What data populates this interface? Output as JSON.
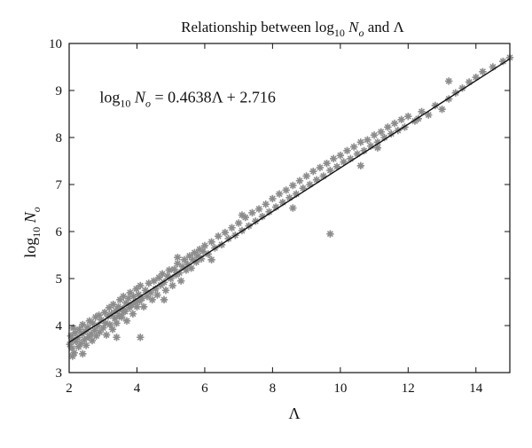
{
  "chart_data": {
    "type": "scatter",
    "title": {
      "prefix": "Relationship between log",
      "sub": "10",
      "var": "N",
      "var_sub": "o",
      "suffix": " and Λ"
    },
    "xlabel": "Λ",
    "ylabel": {
      "prefix": "log",
      "sub": "10",
      "var": "N",
      "var_sub": "o"
    },
    "xlim": [
      2,
      15
    ],
    "ylim": [
      3,
      10
    ],
    "xticks": [
      2,
      4,
      6,
      8,
      10,
      12,
      14
    ],
    "yticks": [
      3,
      4,
      5,
      6,
      7,
      8,
      9,
      10
    ],
    "grid": false,
    "legend": "none",
    "series": [
      {
        "marker": "star",
        "color": "#8c8c8c",
        "points": [
          [
            2.02,
            3.6
          ],
          [
            2.05,
            3.78
          ],
          [
            2.08,
            3.52
          ],
          [
            2.1,
            3.7
          ],
          [
            2.12,
            3.95
          ],
          [
            2.15,
            3.42
          ],
          [
            2.18,
            3.85
          ],
          [
            2.2,
            3.66
          ],
          [
            2.25,
            3.74
          ],
          [
            2.28,
            3.55
          ],
          [
            2.3,
            3.92
          ],
          [
            2.35,
            3.62
          ],
          [
            2.38,
            3.82
          ],
          [
            2.4,
            4.02
          ],
          [
            2.45,
            3.7
          ],
          [
            2.48,
            3.88
          ],
          [
            2.5,
            3.58
          ],
          [
            2.55,
            3.96
          ],
          [
            2.58,
            3.76
          ],
          [
            2.6,
            4.1
          ],
          [
            2.65,
            3.82
          ],
          [
            2.68,
            3.68
          ],
          [
            2.7,
            4.05
          ],
          [
            2.75,
            3.9
          ],
          [
            2.78,
            4.18
          ],
          [
            2.8,
            3.78
          ],
          [
            2.85,
            4.0
          ],
          [
            2.88,
            4.22
          ],
          [
            2.9,
            3.86
          ],
          [
            2.95,
            4.12
          ],
          [
            3.0,
            3.95
          ],
          [
            3.05,
            4.28
          ],
          [
            3.08,
            4.05
          ],
          [
            3.1,
            3.8
          ],
          [
            3.15,
            4.2
          ],
          [
            3.18,
            4.38
          ],
          [
            3.2,
            4.02
          ],
          [
            3.25,
            4.25
          ],
          [
            3.28,
            3.92
          ],
          [
            3.3,
            4.45
          ],
          [
            3.35,
            4.15
          ],
          [
            3.38,
            4.32
          ],
          [
            3.4,
            4.05
          ],
          [
            3.45,
            4.4
          ],
          [
            3.48,
            4.22
          ],
          [
            3.5,
            4.55
          ],
          [
            3.55,
            4.18
          ],
          [
            3.58,
            4.36
          ],
          [
            3.6,
            4.62
          ],
          [
            3.65,
            4.3
          ],
          [
            3.68,
            4.48
          ],
          [
            3.7,
            4.1
          ],
          [
            3.75,
            4.58
          ],
          [
            3.78,
            4.38
          ],
          [
            3.8,
            4.7
          ],
          [
            3.85,
            4.44
          ],
          [
            3.88,
            4.25
          ],
          [
            3.9,
            4.62
          ],
          [
            3.95,
            4.5
          ],
          [
            3.98,
            4.78
          ],
          [
            4.0,
            4.4
          ],
          [
            4.05,
            4.66
          ],
          [
            4.08,
            4.52
          ],
          [
            4.1,
            4.85
          ],
          [
            4.15,
            4.58
          ],
          [
            4.2,
            4.4
          ],
          [
            4.25,
            4.75
          ],
          [
            4.3,
            4.62
          ],
          [
            4.35,
            4.9
          ],
          [
            4.4,
            4.7
          ],
          [
            4.45,
            4.55
          ],
          [
            4.5,
            4.95
          ],
          [
            4.55,
            4.78
          ],
          [
            4.6,
            4.65
          ],
          [
            4.65,
            5.02
          ],
          [
            4.7,
            4.86
          ],
          [
            4.75,
            5.1
          ],
          [
            4.8,
            4.92
          ],
          [
            4.85,
            4.75
          ],
          [
            4.9,
            5.05
          ],
          [
            4.95,
            5.18
          ],
          [
            5.0,
            5.0
          ],
          [
            5.05,
            4.85
          ],
          [
            5.1,
            5.2
          ],
          [
            5.15,
            5.08
          ],
          [
            5.2,
            5.32
          ],
          [
            5.25,
            5.12
          ],
          [
            5.3,
            4.95
          ],
          [
            5.35,
            5.25
          ],
          [
            5.4,
            5.4
          ],
          [
            5.45,
            5.18
          ],
          [
            5.5,
            5.3
          ],
          [
            5.55,
            5.48
          ],
          [
            5.6,
            5.22
          ],
          [
            5.65,
            5.4
          ],
          [
            5.7,
            5.55
          ],
          [
            5.75,
            5.35
          ],
          [
            5.8,
            5.48
          ],
          [
            5.85,
            5.62
          ],
          [
            5.9,
            5.42
          ],
          [
            5.95,
            5.58
          ],
          [
            6.0,
            5.7
          ],
          [
            6.1,
            5.52
          ],
          [
            6.2,
            5.78
          ],
          [
            6.3,
            5.65
          ],
          [
            6.4,
            5.9
          ],
          [
            6.5,
            5.72
          ],
          [
            6.6,
            5.98
          ],
          [
            6.7,
            5.85
          ],
          [
            6.8,
            6.08
          ],
          [
            6.9,
            5.92
          ],
          [
            7.0,
            6.18
          ],
          [
            7.1,
            6.02
          ],
          [
            7.2,
            6.3
          ],
          [
            7.3,
            6.12
          ],
          [
            7.4,
            6.4
          ],
          [
            7.5,
            6.22
          ],
          [
            7.6,
            6.48
          ],
          [
            7.7,
            6.32
          ],
          [
            7.8,
            6.58
          ],
          [
            7.9,
            6.42
          ],
          [
            8.0,
            6.7
          ],
          [
            8.1,
            6.52
          ],
          [
            8.2,
            6.8
          ],
          [
            8.3,
            6.62
          ],
          [
            8.4,
            6.88
          ],
          [
            8.5,
            6.72
          ],
          [
            8.6,
            6.98
          ],
          [
            8.7,
            6.8
          ],
          [
            8.8,
            7.08
          ],
          [
            8.9,
            6.92
          ],
          [
            9.0,
            7.18
          ],
          [
            9.1,
            7.0
          ],
          [
            9.2,
            7.28
          ],
          [
            9.3,
            7.1
          ],
          [
            9.4,
            7.36
          ],
          [
            9.5,
            7.18
          ],
          [
            9.6,
            7.45
          ],
          [
            9.7,
            7.3
          ],
          [
            9.8,
            7.55
          ],
          [
            9.9,
            7.38
          ],
          [
            10.0,
            7.62
          ],
          [
            10.1,
            7.48
          ],
          [
            10.2,
            7.72
          ],
          [
            10.3,
            7.55
          ],
          [
            10.4,
            7.8
          ],
          [
            10.5,
            7.65
          ],
          [
            10.6,
            7.9
          ],
          [
            10.7,
            7.72
          ],
          [
            10.8,
            7.95
          ],
          [
            10.9,
            7.82
          ],
          [
            11.0,
            8.05
          ],
          [
            11.1,
            7.9
          ],
          [
            11.2,
            8.12
          ],
          [
            11.3,
            8.0
          ],
          [
            11.4,
            8.22
          ],
          [
            11.5,
            8.08
          ],
          [
            11.6,
            8.3
          ],
          [
            11.7,
            8.15
          ],
          [
            11.8,
            8.38
          ],
          [
            11.9,
            8.22
          ],
          [
            12.0,
            8.45
          ],
          [
            12.2,
            8.35
          ],
          [
            12.4,
            8.55
          ],
          [
            12.6,
            8.48
          ],
          [
            12.8,
            8.68
          ],
          [
            13.0,
            8.6
          ],
          [
            13.2,
            8.82
          ],
          [
            13.4,
            8.95
          ],
          [
            13.6,
            9.05
          ],
          [
            13.8,
            9.18
          ],
          [
            14.0,
            9.28
          ],
          [
            14.2,
            9.4
          ],
          [
            14.5,
            9.5
          ],
          [
            14.8,
            9.62
          ],
          [
            15.0,
            9.7
          ],
          [
            2.1,
            3.35
          ],
          [
            2.4,
            3.4
          ],
          [
            3.4,
            3.75
          ],
          [
            4.1,
            3.75
          ],
          [
            9.7,
            5.95
          ],
          [
            11.1,
            7.78
          ],
          [
            12.3,
            8.4
          ],
          [
            13.2,
            9.2
          ],
          [
            10.6,
            7.4
          ],
          [
            8.6,
            6.5
          ],
          [
            7.1,
            6.35
          ],
          [
            5.2,
            5.45
          ],
          [
            6.2,
            5.4
          ],
          [
            4.8,
            4.55
          ],
          [
            3.6,
            4.3
          ]
        ]
      }
    ],
    "fit_line": {
      "slope": 0.4638,
      "intercept": 2.716,
      "x_range": [
        2,
        15
      ],
      "color": "#111111"
    },
    "annotation": {
      "prefix": "log",
      "sub": "10",
      "var": "N",
      "var_sub": "o",
      "equation": " = 0.4638Λ + 2.716",
      "at": [
        2.9,
        8.75
      ]
    }
  }
}
